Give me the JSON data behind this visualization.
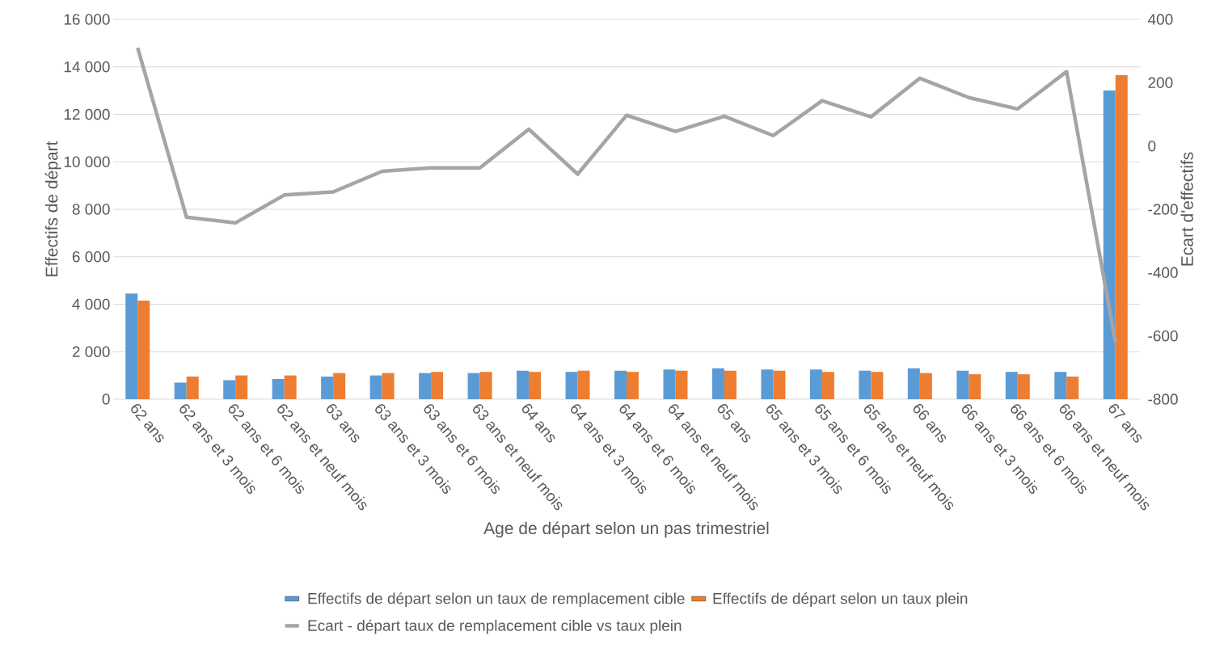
{
  "chart_data": {
    "type": "bar",
    "categories": [
      "62 ans",
      "62 ans et 3 mois",
      "62 ans et 6 mois",
      "62 ans et neuf mois",
      "63 ans",
      "63 ans et 3 mois",
      "63 ans et 6 mois",
      "63 ans et neuf mois",
      "64 ans",
      "64 ans et 3 mois",
      "64 ans et 6 mois",
      "64 ans et neuf mois",
      "65 ans",
      "65 ans et 3 mois",
      "65 ans et 6 mois",
      "65 ans et neuf mois",
      "66 ans",
      "66 ans et 3 mois",
      "66 ans et 6 mois",
      "66 ans et neuf mois",
      "67 ans"
    ],
    "series": [
      {
        "name": "Effectifs de départ selon un taux de remplacement cible",
        "color": "#5b9bd5",
        "values": [
          4450,
          700,
          800,
          850,
          950,
          1000,
          1100,
          1100,
          1200,
          1150,
          1200,
          1250,
          1300,
          1250,
          1250,
          1200,
          1300,
          1200,
          1150,
          1150,
          13000
        ]
      },
      {
        "name": "Effectifs de départ selon un taux plein",
        "color": "#ed7d31",
        "values": [
          4150,
          950,
          1000,
          1000,
          1100,
          1100,
          1150,
          1150,
          1150,
          1200,
          1150,
          1200,
          1200,
          1200,
          1150,
          1150,
          1100,
          1050,
          1050,
          950,
          13650
        ]
      },
      {
        "name": "Ecart - départ taux de remplacement cible vs taux plein",
        "color": "#a5a5a5",
        "type": "line",
        "axis": "y2",
        "values": [
          310,
          -225,
          -243,
          -155,
          -145,
          -80,
          -69,
          -69,
          53,
          -89,
          97,
          46,
          94,
          33,
          143,
          92,
          214,
          153,
          117,
          235,
          -620
        ]
      }
    ],
    "xlabel": "Age de départ selon un pas trimestriel",
    "ylabel": "Effectifs de départ",
    "y2label": "Ecart  d'effectifs",
    "ylim": [
      0,
      16000
    ],
    "yticks": [
      {
        "value": 0,
        "label": "0"
      },
      {
        "value": 2000,
        "label": "2 000"
      },
      {
        "value": 4000,
        "label": "4 000"
      },
      {
        "value": 6000,
        "label": "6 000"
      },
      {
        "value": 8000,
        "label": "8 000"
      },
      {
        "value": 10000,
        "label": "10 000"
      },
      {
        "value": 12000,
        "label": "12 000"
      },
      {
        "value": 14000,
        "label": "14 000"
      },
      {
        "value": 16000,
        "label": "16 000"
      }
    ],
    "y2lim": [
      -800,
      400
    ],
    "y2ticks": [
      -800,
      -600,
      -400,
      -200,
      0,
      200,
      400
    ],
    "grid": "y",
    "legend": "bottom"
  }
}
